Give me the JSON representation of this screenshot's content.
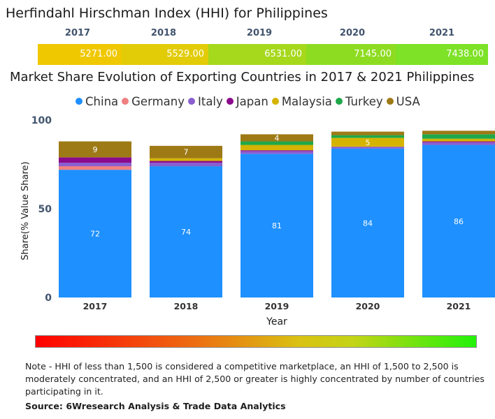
{
  "hhi": {
    "title": "Herfindahl Hirschman Index (HHI) for Philippines",
    "years": [
      "2017",
      "2018",
      "2019",
      "2020",
      "2021"
    ],
    "values": [
      "5271.00",
      "5529.00",
      "6531.00",
      "7145.00",
      "7438.00"
    ],
    "colors": [
      "#f0c800",
      "#e2cc08",
      "#a6d81c",
      "#8edc22",
      "#7ee227"
    ]
  },
  "chart_data": {
    "type": "bar",
    "stacked": true,
    "title": "Market Share Evolution of Exporting Countries in 2017 & 2021 Philippines",
    "xlabel": "Year",
    "ylabel": "Share(% Value Share)",
    "ylim": [
      0,
      100
    ],
    "yticks": [
      0,
      50,
      100
    ],
    "categories": [
      "2017",
      "2018",
      "2019",
      "2020",
      "2021"
    ],
    "series": [
      {
        "name": "China",
        "color": "#1e90ff",
        "values": [
          72,
          74,
          81,
          84,
          86
        ],
        "labels": [
          "72",
          "74",
          "81",
          "84",
          "86"
        ]
      },
      {
        "name": "Germany",
        "color": "#f08080",
        "values": [
          2,
          0,
          0,
          0,
          0
        ],
        "labels": [
          "",
          "",
          "",
          "",
          ""
        ]
      },
      {
        "name": "Italy",
        "color": "#8a5fd0",
        "values": [
          2,
          2,
          1.5,
          1,
          1.5
        ],
        "labels": [
          "",
          "",
          "",
          "",
          ""
        ]
      },
      {
        "name": "Japan",
        "color": "#8b0a8b",
        "values": [
          3,
          1,
          0.5,
          0,
          0.5
        ],
        "labels": [
          "",
          "",
          "",
          "",
          ""
        ]
      },
      {
        "name": "Malaysia",
        "color": "#d4b400",
        "values": [
          0,
          1.5,
          3,
          5,
          1.5
        ],
        "labels": [
          "",
          "",
          "",
          "5",
          ""
        ]
      },
      {
        "name": "Turkey",
        "color": "#1fa84a",
        "values": [
          0,
          0,
          2,
          1.5,
          2.5
        ],
        "labels": [
          "",
          "",
          "",
          "",
          ""
        ]
      },
      {
        "name": "USA",
        "color": "#9e7a16",
        "values": [
          9,
          7,
          4,
          2,
          2
        ],
        "labels": [
          "9",
          "7",
          "4",
          "",
          ""
        ]
      }
    ]
  },
  "gradient": {
    "from": "#ff0000",
    "to": "#22f20a"
  },
  "note": "Note - HHI of less than 1,500 is considered a competitive marketplace, an HHI of 1,500 to 2,500 is moderately concentrated, and an HHI of 2,500 or greater is highly concentrated by number of countries participating in it.",
  "source": "Source: 6Wresearch Analysis & Trade Data Analytics"
}
